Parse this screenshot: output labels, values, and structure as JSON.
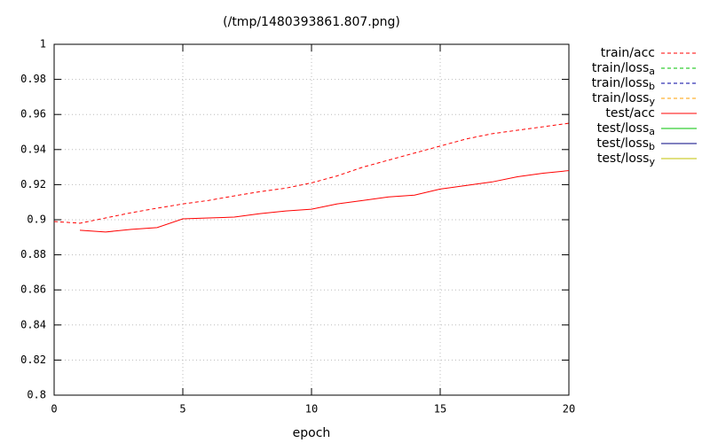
{
  "chart_data": {
    "type": "line",
    "title": "(/tmp/1480393861.807.png)",
    "x_label": "epoch",
    "x": [
      0,
      1,
      2,
      3,
      4,
      5,
      6,
      7,
      8,
      9,
      10,
      11,
      12,
      13,
      14,
      15,
      16,
      17,
      18,
      19,
      20
    ],
    "xlim": [
      0,
      20
    ],
    "xticks": [
      0,
      5,
      10,
      15,
      20
    ],
    "ylim": [
      0.8,
      1
    ],
    "yticks": [
      0.8,
      0.82,
      0.84,
      0.86,
      0.88,
      0.9,
      0.92,
      0.94,
      0.96,
      0.98,
      1
    ],
    "grid": true,
    "legend": "outside-right",
    "series": [
      {
        "name": "train/acc",
        "color": "#ff0000",
        "dash": true,
        "values": [
          0.899,
          0.898,
          0.901,
          0.904,
          0.9066,
          0.909,
          0.911,
          0.9136,
          0.916,
          0.918,
          0.921,
          0.925,
          0.93,
          0.934,
          0.938,
          0.942,
          0.946,
          0.949,
          0.951,
          0.953,
          0.955
        ]
      },
      {
        "name": "train/loss_a",
        "color": "#00c000",
        "dash": true,
        "values": [
          null,
          null,
          null,
          null,
          null,
          null,
          null,
          null,
          null,
          null,
          null,
          null,
          null,
          null,
          null,
          null,
          null,
          null,
          null,
          null,
          null
        ]
      },
      {
        "name": "train/loss_b",
        "color": "#0000a0",
        "dash": true,
        "values": [
          null,
          null,
          null,
          null,
          null,
          null,
          null,
          null,
          null,
          null,
          null,
          null,
          null,
          null,
          null,
          null,
          null,
          null,
          null,
          null,
          null
        ]
      },
      {
        "name": "train/loss_y",
        "color": "#ffa000",
        "dash": true,
        "values": [
          null,
          null,
          null,
          null,
          null,
          null,
          null,
          null,
          null,
          null,
          null,
          null,
          null,
          null,
          null,
          null,
          null,
          null,
          null,
          null,
          null
        ]
      },
      {
        "name": "test/acc",
        "color": "#ff0000",
        "dash": false,
        "values": [
          null,
          0.894,
          0.893,
          0.8945,
          0.8955,
          0.9005,
          0.901,
          0.9015,
          0.9035,
          0.905,
          0.906,
          0.909,
          0.911,
          0.913,
          0.914,
          0.9175,
          0.9195,
          0.9215,
          0.9245,
          0.9265,
          0.928
        ]
      },
      {
        "name": "test/loss_a",
        "color": "#00c000",
        "dash": false,
        "values": [
          null,
          null,
          null,
          null,
          null,
          null,
          null,
          null,
          null,
          null,
          null,
          null,
          null,
          null,
          null,
          null,
          null,
          null,
          null,
          null,
          null
        ]
      },
      {
        "name": "test/loss_b",
        "color": "#000080",
        "dash": false,
        "values": [
          null,
          null,
          null,
          null,
          null,
          null,
          null,
          null,
          null,
          null,
          null,
          null,
          null,
          null,
          null,
          null,
          null,
          null,
          null,
          null,
          null
        ]
      },
      {
        "name": "test/loss_y",
        "color": "#c0c000",
        "dash": false,
        "values": [
          null,
          null,
          null,
          null,
          null,
          null,
          null,
          null,
          null,
          null,
          null,
          null,
          null,
          null,
          null,
          null,
          null,
          null,
          null,
          null,
          null
        ]
      }
    ]
  }
}
